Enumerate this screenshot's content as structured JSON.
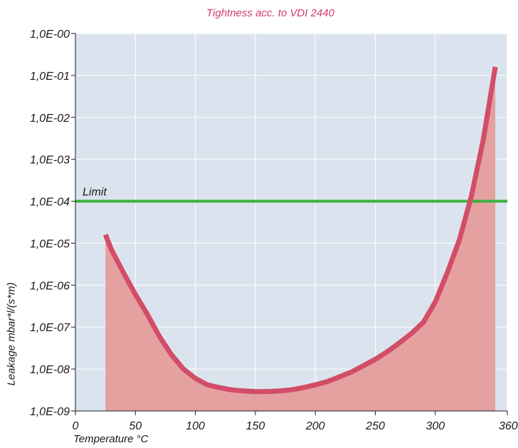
{
  "chart_data": {
    "type": "area",
    "title": "Tightness acc. to VDI 2440",
    "xlabel": "Temperature °C",
    "ylabel": "Leakage mbar*l/(s*m)",
    "xlim": [
      0,
      360
    ],
    "ylim": [
      1e-09,
      1
    ],
    "yscale": "log",
    "grid": true,
    "x_ticks": [
      "0",
      "50",
      "100",
      "150",
      "200",
      "250",
      "300",
      "360"
    ],
    "x_tick_values": [
      0,
      50,
      100,
      150,
      200,
      250,
      300,
      360
    ],
    "y_ticks": [
      "1,0E-00",
      "1,0E-01",
      "1,0E-02",
      "1,0E-03",
      "1,0E-04",
      "1,0E-05",
      "1,0E-06",
      "1,0E-07",
      "1,0E-08",
      "1,0E-09"
    ],
    "y_tick_exponents": [
      0,
      -1,
      -2,
      -3,
      -4,
      -5,
      -6,
      -7,
      -8,
      -9
    ],
    "series": [
      {
        "color": "#d24d67",
        "fill": "#e5a0a0",
        "points": [
          [
            25,
            1.6e-05
          ],
          [
            30,
            7e-06
          ],
          [
            40,
            2e-06
          ],
          [
            50,
            6e-07
          ],
          [
            60,
            2e-07
          ],
          [
            70,
            6e-08
          ],
          [
            80,
            2.2e-08
          ],
          [
            90,
            1e-08
          ],
          [
            100,
            6e-09
          ],
          [
            110,
            4.2e-09
          ],
          [
            120,
            3.6e-09
          ],
          [
            130,
            3.2e-09
          ],
          [
            140,
            3e-09
          ],
          [
            150,
            2.9e-09
          ],
          [
            160,
            2.9e-09
          ],
          [
            170,
            3e-09
          ],
          [
            180,
            3.2e-09
          ],
          [
            190,
            3.6e-09
          ],
          [
            200,
            4.2e-09
          ],
          [
            210,
            5e-09
          ],
          [
            220,
            6.5e-09
          ],
          [
            230,
            8.5e-09
          ],
          [
            240,
            1.2e-08
          ],
          [
            250,
            1.7e-08
          ],
          [
            260,
            2.6e-08
          ],
          [
            270,
            4.2e-08
          ],
          [
            280,
            7e-08
          ],
          [
            290,
            1.3e-07
          ],
          [
            300,
            4e-07
          ],
          [
            310,
            2e-06
          ],
          [
            320,
            1.2e-05
          ],
          [
            330,
            0.00013
          ],
          [
            340,
            0.003
          ],
          [
            350,
            0.16
          ]
        ]
      }
    ],
    "reference_lines": [
      {
        "label": "Limit",
        "value": 0.0001,
        "color": "#3cb23f"
      }
    ],
    "colors": {
      "plot_background": "#dbe4ee",
      "gridline": "#ffffff",
      "axis": "#1a1a1a"
    }
  }
}
